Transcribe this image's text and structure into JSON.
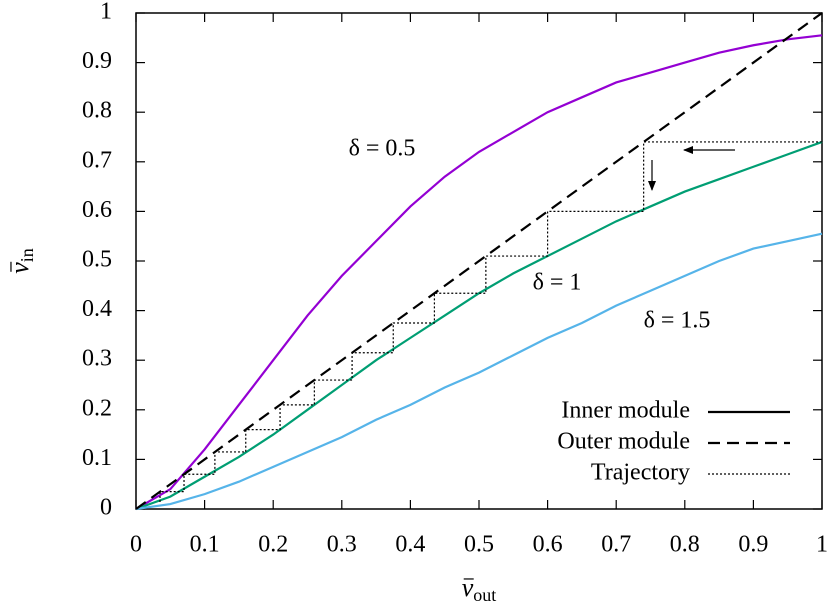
{
  "chart_data": {
    "type": "line",
    "x_label": {
      "base": "v",
      "sub": "out"
    },
    "y_label": {
      "base": "v",
      "sub": "in"
    },
    "xlim": [
      0,
      1
    ],
    "ylim": [
      0,
      1
    ],
    "xticks": [
      0,
      0.1,
      0.2,
      0.3,
      0.4,
      0.5,
      0.6,
      0.7,
      0.8,
      0.9,
      1
    ],
    "yticks": [
      0,
      0.1,
      0.2,
      0.3,
      0.4,
      0.5,
      0.6,
      0.7,
      0.8,
      0.9,
      1
    ],
    "grid": false,
    "legend_position": "bottom-right",
    "legend": [
      {
        "name": "Inner module",
        "line_style": "solid",
        "color": "#000000"
      },
      {
        "name": "Outer module",
        "line_style": "dashed",
        "color": "#000000"
      },
      {
        "name": "Trajectory",
        "line_style": "dotted",
        "color": "#000000"
      }
    ],
    "series": [
      {
        "label": "δ = 0.5",
        "color": "#9400d3",
        "line_style": "solid",
        "x": [
          0,
          0.05,
          0.1,
          0.15,
          0.2,
          0.25,
          0.3,
          0.35,
          0.4,
          0.45,
          0.5,
          0.55,
          0.6,
          0.65,
          0.7,
          0.75,
          0.8,
          0.85,
          0.9,
          0.95,
          1
        ],
        "values": [
          0,
          0.04,
          0.12,
          0.21,
          0.3,
          0.39,
          0.47,
          0.54,
          0.61,
          0.67,
          0.72,
          0.76,
          0.8,
          0.83,
          0.86,
          0.88,
          0.9,
          0.92,
          0.935,
          0.947,
          0.955
        ]
      },
      {
        "label": "δ = 1",
        "color": "#009e73",
        "line_style": "solid",
        "x": [
          0,
          0.05,
          0.1,
          0.15,
          0.2,
          0.25,
          0.3,
          0.35,
          0.4,
          0.45,
          0.5,
          0.55,
          0.6,
          0.65,
          0.7,
          0.75,
          0.8,
          0.85,
          0.9,
          0.95,
          1
        ],
        "values": [
          0,
          0.025,
          0.065,
          0.105,
          0.15,
          0.2,
          0.25,
          0.3,
          0.345,
          0.39,
          0.435,
          0.475,
          0.51,
          0.545,
          0.58,
          0.61,
          0.64,
          0.665,
          0.69,
          0.715,
          0.74
        ]
      },
      {
        "label": "δ = 1.5",
        "color": "#56b4e9",
        "line_style": "solid",
        "x": [
          0,
          0.05,
          0.1,
          0.15,
          0.2,
          0.25,
          0.3,
          0.35,
          0.4,
          0.45,
          0.5,
          0.55,
          0.6,
          0.65,
          0.7,
          0.75,
          0.8,
          0.85,
          0.9,
          0.95,
          1
        ],
        "values": [
          0,
          0.01,
          0.03,
          0.055,
          0.085,
          0.115,
          0.145,
          0.18,
          0.21,
          0.245,
          0.275,
          0.31,
          0.345,
          0.375,
          0.41,
          0.44,
          0.47,
          0.5,
          0.525,
          0.54,
          0.555
        ]
      },
      {
        "name": "Outer module",
        "color": "#000000",
        "line_style": "dashed",
        "x": [
          0,
          1
        ],
        "values": [
          0,
          1
        ]
      },
      {
        "name": "Trajectory",
        "color": "#000000",
        "line_style": "dotted",
        "x": [
          1,
          0.74,
          0.74,
          0.6,
          0.6,
          0.51,
          0.51,
          0.435,
          0.435,
          0.375,
          0.375,
          0.315,
          0.315,
          0.26,
          0.26,
          0.21,
          0.21,
          0.16,
          0.16,
          0.115,
          0.115,
          0.07,
          0.07,
          0.035,
          0.035
        ],
        "values": [
          0.74,
          0.74,
          0.6,
          0.6,
          0.51,
          0.51,
          0.435,
          0.435,
          0.375,
          0.375,
          0.315,
          0.315,
          0.26,
          0.26,
          0.21,
          0.21,
          0.16,
          0.16,
          0.115,
          0.115,
          0.07,
          0.07,
          0.035,
          0.035,
          0.012
        ]
      }
    ]
  }
}
